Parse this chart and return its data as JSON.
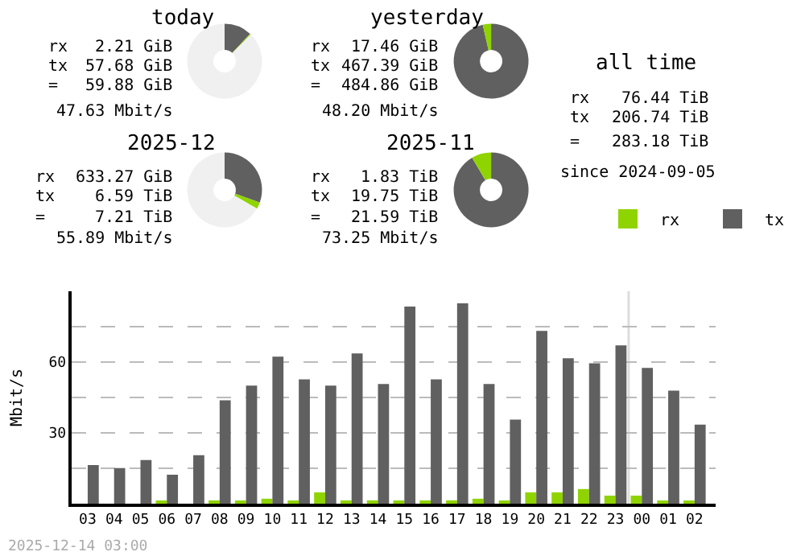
{
  "chart_data": [
    {
      "type": "donut",
      "title": "today",
      "categories": [
        null,
        null,
        null
      ],
      "values": [
        11.9,
        0.46,
        87.64
      ],
      "colors": [
        "#606060",
        "#8fd400",
        "#f0f0f0"
      ],
      "annotations": [
        "rx",
        "2.21 GiB",
        "tx",
        "57.68 GiB",
        "=",
        "59.88 GiB",
        "47.63 Mbit/s"
      ]
    },
    {
      "type": "donut",
      "title": "yesterday",
      "categories": [
        null,
        null,
        null
      ],
      "values": [
        96.4,
        3.6,
        0
      ],
      "colors": [
        "#606060",
        "#8fd400",
        "#f0f0f0"
      ],
      "annotations": [
        "rx",
        "17.46 GiB",
        "tx",
        "467.39 GiB",
        "=",
        "484.86 GiB",
        "48.20 Mbit/s"
      ]
    },
    {
      "type": "other",
      "title": "all time",
      "annotations": [
        "rx",
        "76.44 TiB",
        "tx",
        "206.74 TiB",
        "=",
        "283.18 TiB",
        "since 2024-09-05"
      ]
    },
    {
      "type": "donut",
      "title": "2025-12",
      "categories": [
        null,
        null,
        null
      ],
      "values": [
        30.52,
        2.86,
        66.62
      ],
      "colors": [
        "#606060",
        "#8fd400",
        "#f0f0f0"
      ],
      "annotations": [
        "rx",
        "633.27 GiB",
        "tx",
        "6.59 TiB",
        "=",
        "7.21 TiB",
        "55.89 Mbit/s"
      ]
    },
    {
      "type": "donut",
      "title": "2025-11",
      "categories": [
        null,
        null,
        null
      ],
      "values": [
        91.52,
        8.48,
        0
      ],
      "colors": [
        "#606060",
        "#8fd400",
        "#f0f0f0"
      ],
      "annotations": [
        "rx",
        "1.83 TiB",
        "tx",
        "19.75 TiB",
        "=",
        "21.59 TiB",
        "73.25 Mbit/s"
      ]
    },
    {
      "type": "bar",
      "ylabel": "Mbit/s",
      "categories": [
        "03",
        "04",
        "05",
        "06",
        "07",
        "08",
        "09",
        "10",
        "11",
        "12",
        "13",
        "14",
        "15",
        "16",
        "17",
        "18",
        "19",
        "20",
        "21",
        "22",
        "23",
        "00",
        "01",
        "02"
      ],
      "series": [
        {
          "name": "rx",
          "color": "#8fd400",
          "values": [
            0,
            0,
            0,
            0.7,
            0,
            1.4,
            0.7,
            2.1,
            0.7,
            4.8,
            1.4,
            1.4,
            1.4,
            1.4,
            1.4,
            2.1,
            0.7,
            4.8,
            4.8,
            6.2,
            3.4,
            3.4,
            1.4,
            0.7
          ]
        },
        {
          "name": "tx",
          "color": "#606060",
          "values": [
            16.4,
            15.1,
            18.5,
            12.3,
            20.5,
            43.8,
            50.0,
            62.3,
            52.7,
            50.0,
            63.7,
            50.7,
            83.5,
            52.7,
            84.9,
            50.7,
            35.6,
            73.2,
            61.6,
            59.5,
            67.1,
            57.5,
            47.9,
            33.5
          ]
        }
      ],
      "ylim": [
        0,
        90
      ],
      "yticks": [
        {
          "value": 15,
          "label": null
        },
        30,
        {
          "value": 45,
          "label": null
        },
        60,
        {
          "value": 75,
          "label": null
        }
      ],
      "grid": "y",
      "legend": "top right",
      "ref_lines": [
        {
          "axis": "x",
          "value": "00",
          "color": "#dddddd"
        }
      ],
      "annotations": [
        "2025-12-14 03:00"
      ]
    }
  ]
}
